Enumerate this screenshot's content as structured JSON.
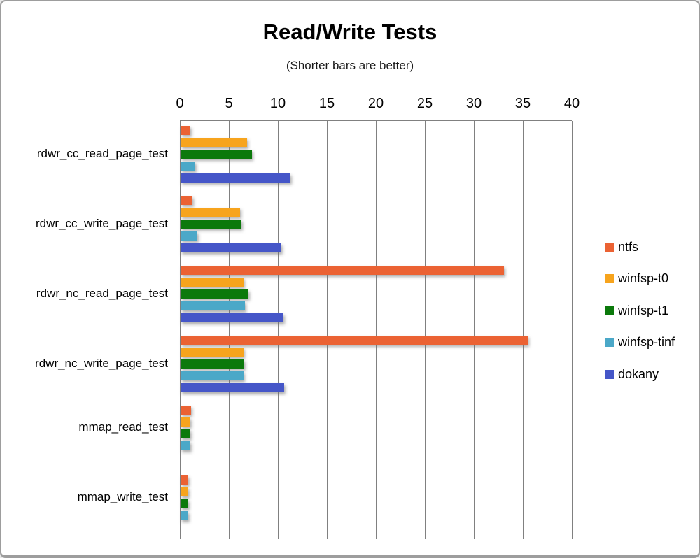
{
  "window": {
    "background": "#ffffff",
    "border_color": "#9d9d9d",
    "gridline_color": "#808080"
  },
  "chart_data": {
    "type": "bar",
    "orientation": "horizontal",
    "title": "Read/Write Tests",
    "subtitle": "(Shorter bars are better)",
    "xlim": [
      0,
      40
    ],
    "xticks": [
      0,
      5,
      10,
      15,
      20,
      25,
      30,
      35,
      40
    ],
    "grid": true,
    "legend_position": "right",
    "categories": [
      "rdwr_cc_read_page_test",
      "rdwr_cc_write_page_test",
      "rdwr_nc_read_page_test",
      "rdwr_nc_write_page_test",
      "mmap_read_test",
      "mmap_write_test"
    ],
    "series": [
      {
        "name": "ntfs",
        "color": "#EB6233",
        "values": [
          1.0,
          1.2,
          33.0,
          35.4,
          1.1,
          0.75
        ]
      },
      {
        "name": "winfsp-t0",
        "color": "#F7A41D",
        "values": [
          6.8,
          6.1,
          6.4,
          6.4,
          1.0,
          0.8
        ]
      },
      {
        "name": "winfsp-t1",
        "color": "#0B790B",
        "values": [
          7.3,
          6.2,
          6.9,
          6.5,
          1.0,
          0.8
        ]
      },
      {
        "name": "winfsp-tinf",
        "color": "#4BA8C8",
        "values": [
          1.5,
          1.7,
          6.6,
          6.4,
          1.0,
          0.75
        ]
      },
      {
        "name": "dokany",
        "color": "#4556C8",
        "values": [
          11.2,
          10.3,
          10.5,
          10.6,
          null,
          null
        ]
      }
    ]
  }
}
